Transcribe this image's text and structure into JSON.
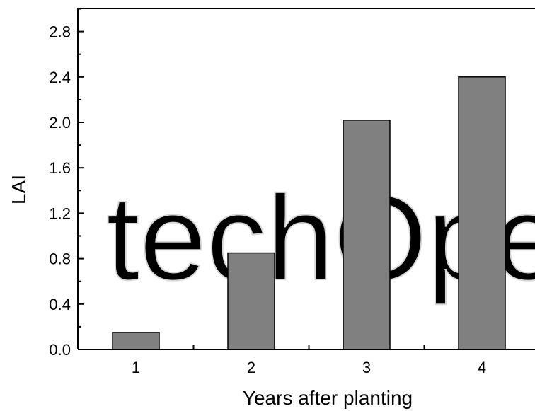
{
  "chart_data": {
    "type": "bar",
    "title": "",
    "xlabel": "Years after planting",
    "ylabel": "LAI",
    "categories": [
      "1",
      "2",
      "3",
      "4"
    ],
    "values": [
      0.15,
      0.85,
      2.02,
      2.4
    ],
    "ylim": [
      0,
      3.0
    ],
    "yticks": [
      "0.0",
      "0.4",
      "0.8",
      "1.2",
      "1.6",
      "2.0",
      "2.4",
      "2.8"
    ],
    "grid": false,
    "legend": "none",
    "colors": {
      "bar_fill": "#808080",
      "bar_stroke": "#000000",
      "axis": "#000000",
      "watermark": "#d9d9d9"
    }
  },
  "watermark": "techOpen"
}
